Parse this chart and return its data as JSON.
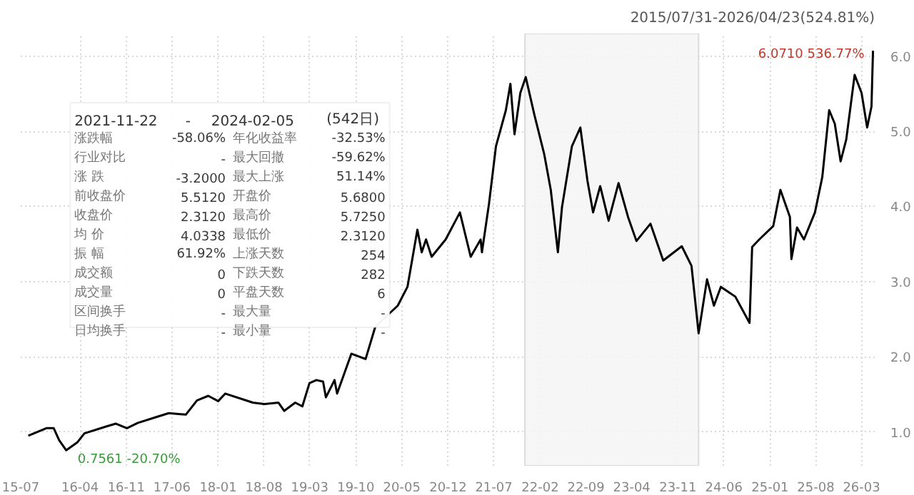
{
  "chart_data": {
    "type": "line",
    "x": [
      "2015-08-05",
      "2015-10-28",
      "2015-12-01",
      "2015-12-26",
      "2016-01-28",
      "2016-03-19",
      "2016-04-21",
      "2016-07-28",
      "2016-09-13",
      "2016-11-04",
      "2016-12-25",
      "2017-03-12",
      "2017-05-17",
      "2017-08-04",
      "2017-09-25",
      "2017-11-16",
      "2018-01-01",
      "2018-02-03",
      "2018-06-11",
      "2018-08-03",
      "2018-10-07",
      "2018-11-03",
      "2018-12-24",
      "2019-01-26",
      "2019-02-28",
      "2019-04-01",
      "2019-05-02",
      "2019-05-15",
      "2019-06-24",
      "2019-07-06",
      "2019-09-10",
      "2019-11-15",
      "2019-12-30",
      "2020-04-12",
      "2020-05-27",
      "2020-07-12",
      "2020-08-01",
      "2020-08-21",
      "2020-09-16",
      "2020-11-20",
      "2021-01-25",
      "2021-03-16",
      "2021-05-01",
      "2021-05-07",
      "2021-06-09",
      "2021-07-11",
      "2021-08-26",
      "2021-09-16",
      "2021-10-05",
      "2021-11-01",
      "2021-11-26",
      "2022-01-05",
      "2022-02-20",
      "2022-03-22",
      "2022-04-24",
      "2022-05-13",
      "2022-06-28",
      "2022-08-06",
      "2022-09-08",
      "2022-10-04",
      "2022-11-06",
      "2022-12-15",
      "2023-01-30",
      "2023-03-15",
      "2023-04-23",
      "2023-06-27",
      "2023-08-25",
      "2023-11-19",
      "2024-01-03",
      "2024-02-05",
      "2024-03-15",
      "2024-04-16",
      "2024-05-18",
      "2024-07-24",
      "2024-09-28",
      "2024-10-10",
      "2024-11-12",
      "2025-01-16",
      "2025-02-18",
      "2025-04-03",
      "2025-04-10",
      "2025-05-06",
      "2025-06-07",
      "2025-07-28",
      "2025-08-31",
      "2025-10-02",
      "2025-10-28",
      "2025-11-24",
      "2025-12-20",
      "2026-01-28",
      "2026-03-01",
      "2026-03-27",
      "2026-04-16",
      "2026-04-23"
    ],
    "series": [
      {
        "color": "#000000",
        "values": [
          0.95,
          1.05,
          1.05,
          0.89,
          0.7561,
          0.86,
          0.98,
          1.07,
          1.11,
          1.05,
          1.12,
          1.19,
          1.25,
          1.23,
          1.42,
          1.48,
          1.41,
          1.51,
          1.39,
          1.37,
          1.39,
          1.28,
          1.39,
          1.34,
          1.65,
          1.69,
          1.67,
          1.46,
          1.69,
          1.51,
          2.04,
          1.97,
          2.4,
          2.68,
          2.93,
          3.69,
          3.39,
          3.56,
          3.33,
          3.56,
          3.92,
          3.33,
          3.56,
          3.39,
          4.04,
          4.8,
          5.28,
          5.63,
          4.96,
          5.51,
          5.72,
          5.22,
          4.69,
          4.22,
          3.39,
          3.99,
          4.8,
          5.05,
          4.34,
          3.92,
          4.27,
          3.81,
          4.31,
          3.86,
          3.54,
          3.77,
          3.28,
          3.47,
          3.21,
          2.312,
          3.03,
          2.68,
          2.93,
          2.8,
          2.45,
          3.46,
          3.56,
          3.74,
          4.22,
          3.86,
          3.3,
          3.72,
          3.56,
          3.92,
          4.39,
          5.28,
          5.1,
          4.6,
          4.89,
          5.75,
          5.51,
          5.05,
          5.33,
          6.071
        ]
      }
    ],
    "xlim": [
      "2015-07-01",
      "2026-05-01"
    ],
    "xticks": [
      {
        "value": "2015-07-01",
        "label": "15-07"
      },
      {
        "value": "2016-04-01",
        "label": "16-04"
      },
      {
        "value": "2016-11-01",
        "label": "16-11"
      },
      {
        "value": "2017-06-01",
        "label": "17-06"
      },
      {
        "value": "2018-01-01",
        "label": "18-01"
      },
      {
        "value": "2018-08-01",
        "label": "18-08"
      },
      {
        "value": "2019-03-01",
        "label": "19-03"
      },
      {
        "value": "2019-10-01",
        "label": "19-10"
      },
      {
        "value": "2020-05-01",
        "label": "20-05"
      },
      {
        "value": "2020-12-01",
        "label": "20-12"
      },
      {
        "value": "2021-07-01",
        "label": "21-07"
      },
      {
        "value": "2022-02-01",
        "label": "22-02"
      },
      {
        "value": "2022-09-01",
        "label": "22-09"
      },
      {
        "value": "2023-04-01",
        "label": "23-04"
      },
      {
        "value": "2023-11-01",
        "label": "23-11"
      },
      {
        "value": "2024-06-01",
        "label": "24-06"
      },
      {
        "value": "2025-01-01",
        "label": "25-01"
      },
      {
        "value": "2025-08-01",
        "label": "25-08"
      },
      {
        "value": "2026-03-01",
        "label": "26-03"
      }
    ],
    "ylim": [
      0.55,
      6.3
    ],
    "yticks": [
      {
        "value": 1,
        "label": "1.0"
      },
      {
        "value": 2,
        "label": "2.0"
      },
      {
        "value": 3,
        "label": "3.0"
      },
      {
        "value": 4,
        "label": "4.0"
      },
      {
        "value": 5,
        "label": "5.0"
      },
      {
        "value": 6,
        "label": "6.0"
      }
    ],
    "grid": true,
    "bands": [
      {
        "axis": "x",
        "from": "2021-11-22",
        "to": "2024-02-05",
        "color": "#f5f5f5"
      }
    ],
    "annotations": [
      "2015/07/31-2026/04/23(524.81%)",
      {
        "text": "6.0710 536.77%",
        "x": "2026-04-23",
        "y": 6.071
      },
      {
        "text": "0.7561 -20.70%",
        "x": "2016-01-28",
        "y": 0.7561
      },
      "2021-11-22",
      "-",
      "2024-02-05",
      "(542日)",
      "涨跌幅",
      "-58.06%",
      "年化收益率",
      "-32.53%",
      "行业对比",
      "-",
      "最大回撤",
      "-59.62%",
      "涨 跌",
      "-3.2000",
      "最大上涨",
      "51.14%",
      "前收盘价",
      "5.5120",
      "开盘价",
      "5.6800",
      "收盘价",
      "2.3120",
      "最高价",
      "5.7250",
      "均 价",
      "4.0338",
      "最低价",
      "2.3120",
      "振 幅",
      "61.92%",
      "上涨天数",
      "254",
      "成交额",
      "0",
      "下跌天数",
      "282",
      "成交量",
      "0",
      "平盘天数",
      "6",
      "区间换手",
      "-",
      "最大量",
      "-",
      "日均换手",
      "-",
      "最小量",
      "-"
    ]
  }
}
